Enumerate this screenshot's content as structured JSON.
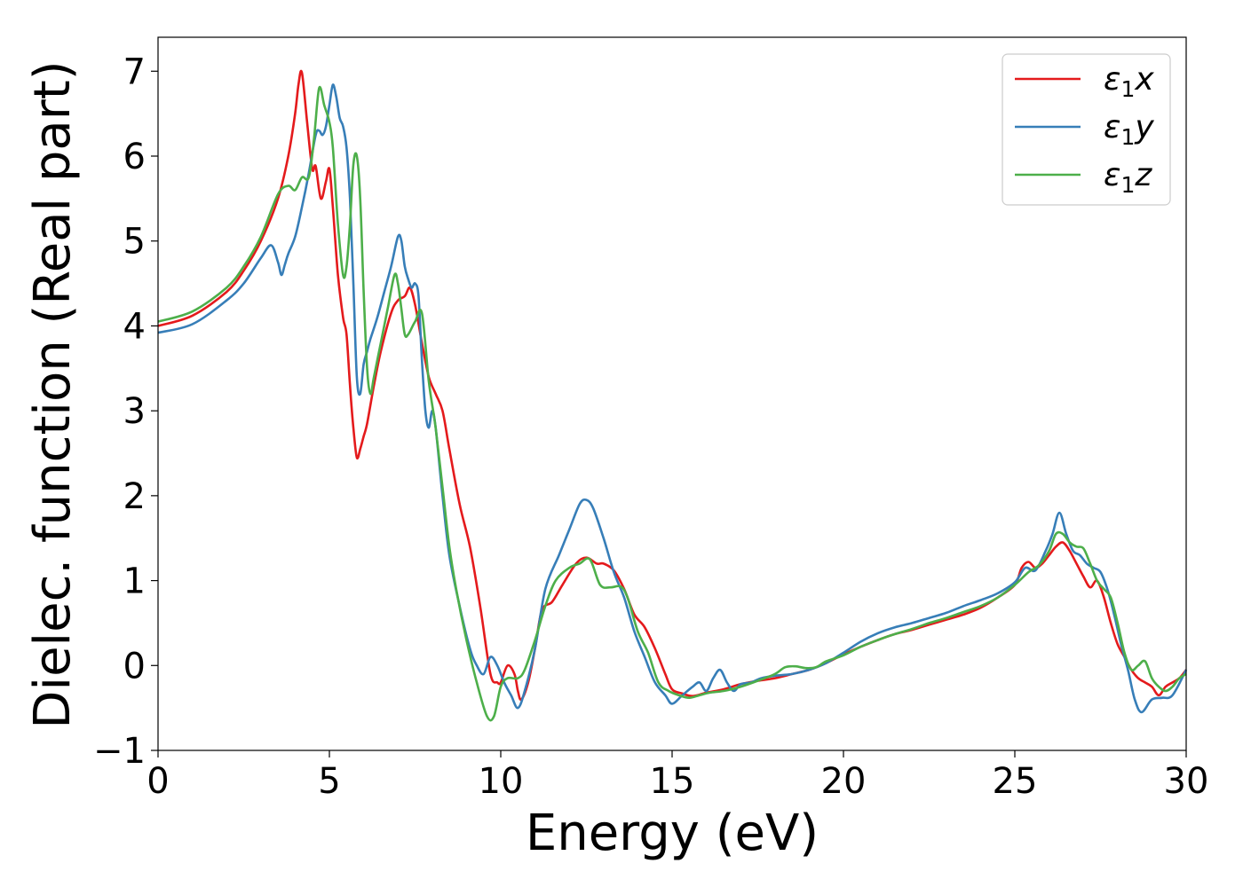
{
  "chart_data": {
    "type": "line",
    "title": "",
    "xlabel": "Energy (eV)",
    "ylabel": "Dielec. function (Real part)",
    "xlim": [
      0,
      30
    ],
    "ylim": [
      -1,
      7.4
    ],
    "xticks": [
      0,
      5,
      10,
      15,
      20,
      25,
      30
    ],
    "xtick_labels": [
      "0",
      "5",
      "10",
      "15",
      "20",
      "25",
      "30"
    ],
    "yticks": [
      -1,
      0,
      1,
      2,
      3,
      4,
      5,
      6,
      7
    ],
    "ytick_labels": [
      "−1",
      "0",
      "1",
      "2",
      "3",
      "4",
      "5",
      "6",
      "7"
    ],
    "grid": false,
    "legend_position": "top-right",
    "series": [
      {
        "name": "ε₁x",
        "legend": {
          "base": "ε",
          "sub": "1",
          "var": "x"
        },
        "color": "#e41a1c",
        "x": [
          0,
          1,
          2,
          2.5,
          3,
          3.5,
          3.8,
          4.0,
          4.1,
          4.2,
          4.35,
          4.5,
          4.6,
          4.75,
          4.9,
          5.0,
          5.1,
          5.25,
          5.4,
          5.5,
          5.6,
          5.7,
          5.8,
          5.9,
          6.0,
          6.1,
          6.3,
          6.5,
          6.8,
          7.0,
          7.2,
          7.35,
          7.5,
          7.7,
          7.9,
          8.1,
          8.3,
          8.5,
          8.8,
          9.1,
          9.4,
          9.7,
          9.9,
          10.0,
          10.2,
          10.4,
          10.5,
          10.6,
          10.8,
          11.0,
          11.2,
          11.5,
          11.8,
          12.2,
          12.5,
          12.8,
          13.0,
          13.3,
          13.6,
          13.9,
          14.2,
          14.5,
          14.8,
          15.0,
          15.3,
          15.6,
          16.0,
          16.5,
          17.0,
          17.5,
          18.0,
          18.5,
          19.0,
          19.5,
          20.0,
          20.5,
          21.0,
          21.5,
          22.0,
          22.5,
          23.0,
          23.5,
          24.0,
          24.5,
          25.0,
          25.2,
          25.4,
          25.6,
          25.8,
          26.0,
          26.2,
          26.4,
          26.6,
          26.8,
          27.0,
          27.2,
          27.4,
          27.6,
          27.8,
          28.0,
          28.2,
          28.4,
          28.6,
          28.8,
          29.0,
          29.2,
          29.4,
          29.6,
          29.8,
          30.0
        ],
        "values": [
          4.0,
          4.12,
          4.4,
          4.65,
          5.0,
          5.5,
          6.0,
          6.5,
          6.85,
          6.98,
          6.4,
          5.85,
          5.88,
          5.5,
          5.7,
          5.85,
          5.4,
          4.6,
          4.1,
          3.9,
          3.3,
          2.8,
          2.45,
          2.55,
          2.7,
          2.85,
          3.3,
          3.7,
          4.15,
          4.3,
          4.35,
          4.45,
          4.25,
          3.8,
          3.4,
          3.2,
          3.0,
          2.55,
          1.9,
          1.4,
          0.7,
          -0.1,
          -0.2,
          -0.2,
          0.0,
          -0.1,
          -0.3,
          -0.4,
          -0.2,
          0.2,
          0.65,
          0.75,
          0.95,
          1.2,
          1.27,
          1.2,
          1.2,
          1.12,
          0.9,
          0.6,
          0.45,
          0.2,
          -0.1,
          -0.28,
          -0.33,
          -0.36,
          -0.32,
          -0.28,
          -0.22,
          -0.18,
          -0.15,
          -0.1,
          -0.05,
          0.03,
          0.13,
          0.22,
          0.3,
          0.37,
          0.42,
          0.48,
          0.54,
          0.6,
          0.68,
          0.8,
          0.95,
          1.15,
          1.22,
          1.15,
          1.2,
          1.3,
          1.4,
          1.45,
          1.35,
          1.2,
          1.05,
          0.92,
          1.0,
          0.8,
          0.5,
          0.25,
          0.1,
          -0.05,
          -0.15,
          -0.2,
          -0.25,
          -0.35,
          -0.25,
          -0.2,
          -0.15,
          -0.05
        ]
      },
      {
        "name": "ε₁y",
        "legend": {
          "base": "ε",
          "sub": "1",
          "var": "y"
        },
        "color": "#377eb8",
        "x": [
          0,
          1,
          2,
          2.5,
          3,
          3.3,
          3.5,
          3.6,
          3.7,
          3.8,
          4.0,
          4.2,
          4.4,
          4.6,
          4.7,
          4.8,
          4.9,
          5.0,
          5.1,
          5.2,
          5.3,
          5.4,
          5.5,
          5.6,
          5.7,
          5.8,
          5.9,
          6.0,
          6.1,
          6.2,
          6.4,
          6.6,
          6.8,
          7.0,
          7.1,
          7.2,
          7.3,
          7.4,
          7.5,
          7.6,
          7.7,
          7.8,
          7.9,
          8.0,
          8.1,
          8.3,
          8.5,
          8.8,
          9.1,
          9.3,
          9.5,
          9.7,
          9.9,
          10.1,
          10.3,
          10.5,
          10.7,
          11.0,
          11.3,
          11.7,
          12.0,
          12.3,
          12.5,
          12.7,
          13.0,
          13.3,
          13.6,
          13.9,
          14.2,
          14.5,
          14.8,
          15.0,
          15.3,
          15.6,
          15.8,
          16.0,
          16.2,
          16.4,
          16.6,
          16.8,
          17.0,
          17.3,
          17.6,
          18.0,
          18.5,
          19.0,
          19.5,
          20.0,
          20.5,
          21.0,
          21.5,
          22.0,
          22.5,
          23.0,
          23.5,
          24.0,
          24.5,
          25.0,
          25.3,
          25.6,
          25.9,
          26.1,
          26.3,
          26.5,
          26.7,
          26.9,
          27.1,
          27.3,
          27.5,
          27.7,
          27.9,
          28.1,
          28.3,
          28.5,
          28.7,
          29.0,
          29.3,
          29.6,
          30.0
        ],
        "values": [
          3.92,
          4.02,
          4.3,
          4.5,
          4.8,
          4.95,
          4.75,
          4.6,
          4.72,
          4.85,
          5.05,
          5.4,
          5.8,
          6.25,
          6.3,
          6.25,
          6.35,
          6.6,
          6.84,
          6.7,
          6.45,
          6.35,
          6.1,
          5.5,
          4.5,
          3.4,
          3.2,
          3.55,
          3.7,
          3.85,
          4.1,
          4.4,
          4.7,
          5.05,
          5.0,
          4.7,
          4.55,
          4.45,
          4.5,
          4.35,
          3.6,
          3.0,
          2.8,
          3.0,
          2.8,
          2.0,
          1.3,
          0.7,
          0.2,
          0.0,
          -0.1,
          0.1,
          0.0,
          -0.2,
          -0.35,
          -0.5,
          -0.3,
          0.2,
          0.9,
          1.3,
          1.6,
          1.9,
          1.95,
          1.85,
          1.5,
          1.1,
          0.8,
          0.4,
          0.1,
          -0.2,
          -0.35,
          -0.45,
          -0.35,
          -0.25,
          -0.2,
          -0.3,
          -0.15,
          -0.05,
          -0.2,
          -0.3,
          -0.22,
          -0.2,
          -0.15,
          -0.12,
          -0.1,
          -0.05,
          0.03,
          0.15,
          0.28,
          0.38,
          0.45,
          0.5,
          0.56,
          0.62,
          0.7,
          0.77,
          0.85,
          0.98,
          1.15,
          1.12,
          1.35,
          1.55,
          1.8,
          1.55,
          1.35,
          1.3,
          1.2,
          1.15,
          1.1,
          0.9,
          0.6,
          0.25,
          -0.05,
          -0.4,
          -0.55,
          -0.4,
          -0.38,
          -0.35,
          -0.05
        ]
      },
      {
        "name": "ε₁z",
        "legend": {
          "base": "ε",
          "sub": "1",
          "var": "z"
        },
        "color": "#4daf4a",
        "x": [
          0,
          1,
          2,
          2.5,
          3,
          3.5,
          3.8,
          4.0,
          4.2,
          4.4,
          4.55,
          4.7,
          4.85,
          5.0,
          5.1,
          5.25,
          5.4,
          5.5,
          5.6,
          5.7,
          5.8,
          5.9,
          6.0,
          6.1,
          6.2,
          6.3,
          6.5,
          6.7,
          6.9,
          7.0,
          7.1,
          7.2,
          7.3,
          7.5,
          7.7,
          7.9,
          8.1,
          8.3,
          8.5,
          8.7,
          9.0,
          9.3,
          9.6,
          9.8,
          10.0,
          10.2,
          10.5,
          10.7,
          11.0,
          11.3,
          11.6,
          12.0,
          12.3,
          12.6,
          12.9,
          13.2,
          13.5,
          13.7,
          14.0,
          14.3,
          14.6,
          14.9,
          15.2,
          15.5,
          15.8,
          16.1,
          16.5,
          17.0,
          17.5,
          18.0,
          18.3,
          18.6,
          18.9,
          19.2,
          19.5,
          20.0,
          20.5,
          21.0,
          21.5,
          22.0,
          22.5,
          23.0,
          23.5,
          24.0,
          24.5,
          25.0,
          25.4,
          25.7,
          26.0,
          26.2,
          26.4,
          26.6,
          26.8,
          27.0,
          27.2,
          27.4,
          27.6,
          27.8,
          28.0,
          28.2,
          28.4,
          28.6,
          28.8,
          29.0,
          29.2,
          29.4,
          29.6,
          29.8,
          30.0
        ],
        "values": [
          4.05,
          4.17,
          4.45,
          4.7,
          5.05,
          5.55,
          5.65,
          5.6,
          5.75,
          5.75,
          6.2,
          6.8,
          6.6,
          6.4,
          6.1,
          5.2,
          4.6,
          4.7,
          5.2,
          5.9,
          6.0,
          5.5,
          4.4,
          3.5,
          3.2,
          3.4,
          3.8,
          4.2,
          4.6,
          4.5,
          4.2,
          3.9,
          3.9,
          4.05,
          4.15,
          3.35,
          2.8,
          2.1,
          1.4,
          0.9,
          0.3,
          -0.2,
          -0.6,
          -0.6,
          -0.25,
          -0.15,
          -0.15,
          -0.05,
          0.3,
          0.7,
          1.0,
          1.15,
          1.2,
          1.25,
          0.95,
          0.92,
          0.93,
          0.8,
          0.4,
          0.15,
          -0.2,
          -0.3,
          -0.35,
          -0.38,
          -0.35,
          -0.32,
          -0.3,
          -0.25,
          -0.18,
          -0.1,
          -0.02,
          -0.01,
          -0.03,
          -0.02,
          0.05,
          0.12,
          0.22,
          0.3,
          0.37,
          0.43,
          0.5,
          0.56,
          0.63,
          0.7,
          0.8,
          0.95,
          1.1,
          1.18,
          1.35,
          1.55,
          1.55,
          1.45,
          1.4,
          1.38,
          1.2,
          1.0,
          0.9,
          0.8,
          0.5,
          0.15,
          -0.05,
          0.0,
          0.05,
          -0.15,
          -0.25,
          -0.3,
          -0.25,
          -0.15,
          -0.1
        ]
      }
    ]
  }
}
